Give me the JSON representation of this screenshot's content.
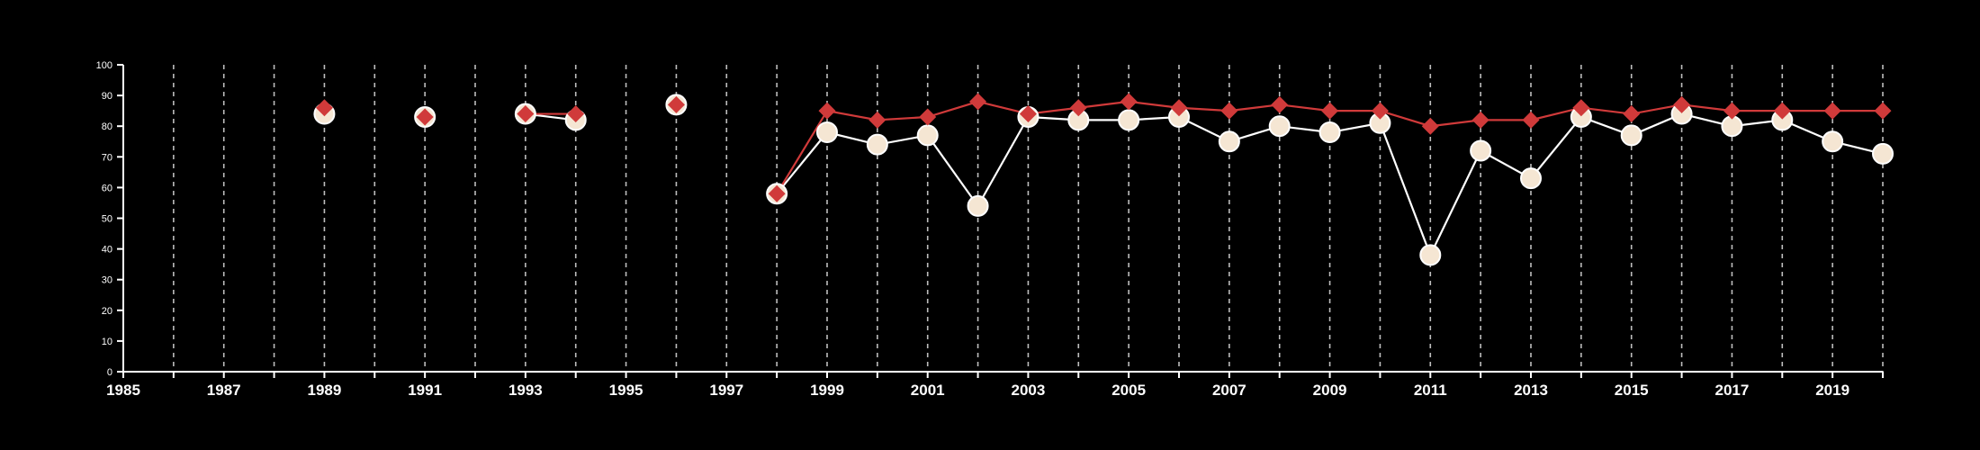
{
  "chart_data": {
    "type": "line",
    "title": "",
    "xlabel": "",
    "ylabel": "",
    "xlim": [
      1985,
      2020
    ],
    "ylim": [
      0,
      100
    ],
    "x_ticks": [
      1985,
      1987,
      1989,
      1991,
      1993,
      1995,
      1997,
      1999,
      2001,
      2003,
      2005,
      2007,
      2009,
      2011,
      2013,
      2015,
      2017,
      2019
    ],
    "y_ticks": [
      0,
      10,
      20,
      30,
      40,
      50,
      60,
      70,
      80,
      90,
      100
    ],
    "grid": "vertical dashed at every year",
    "legend": "none",
    "series": [
      {
        "marker": "circle",
        "color": "#f5e6d3",
        "edge_color": "#ffffff",
        "points": [
          {
            "x": 1989,
            "y": 84
          },
          {
            "x": 1991,
            "y": 83
          },
          {
            "x": 1993,
            "y": 84
          },
          {
            "x": 1994,
            "y": 82
          },
          {
            "x": 1996,
            "y": 87
          },
          {
            "x": 1998,
            "y": 58
          },
          {
            "x": 1999,
            "y": 78
          },
          {
            "x": 2000,
            "y": 74
          },
          {
            "x": 2001,
            "y": 77
          },
          {
            "x": 2002,
            "y": 54
          },
          {
            "x": 2003,
            "y": 83
          },
          {
            "x": 2004,
            "y": 82
          },
          {
            "x": 2005,
            "y": 82
          },
          {
            "x": 2006,
            "y": 83
          },
          {
            "x": 2007,
            "y": 75
          },
          {
            "x": 2008,
            "y": 80
          },
          {
            "x": 2009,
            "y": 78
          },
          {
            "x": 2010,
            "y": 81
          },
          {
            "x": 2011,
            "y": 38
          },
          {
            "x": 2012,
            "y": 72
          },
          {
            "x": 2013,
            "y": 63
          },
          {
            "x": 2014,
            "y": 83
          },
          {
            "x": 2015,
            "y": 77
          },
          {
            "x": 2016,
            "y": 84
          },
          {
            "x": 2017,
            "y": 80
          },
          {
            "x": 2018,
            "y": 82
          },
          {
            "x": 2019,
            "y": 75
          },
          {
            "x": 2020,
            "y": 71
          }
        ]
      },
      {
        "marker": "diamond",
        "color": "#d03a3a",
        "points": [
          {
            "x": 1989,
            "y": 86
          },
          {
            "x": 1991,
            "y": 83
          },
          {
            "x": 1993,
            "y": 84
          },
          {
            "x": 1994,
            "y": 84
          },
          {
            "x": 1996,
            "y": 87
          },
          {
            "x": 1998,
            "y": 58
          },
          {
            "x": 1999,
            "y": 85
          },
          {
            "x": 2000,
            "y": 82
          },
          {
            "x": 2001,
            "y": 83
          },
          {
            "x": 2002,
            "y": 88
          },
          {
            "x": 2003,
            "y": 84
          },
          {
            "x": 2004,
            "y": 86
          },
          {
            "x": 2005,
            "y": 88
          },
          {
            "x": 2006,
            "y": 86
          },
          {
            "x": 2007,
            "y": 85
          },
          {
            "x": 2008,
            "y": 87
          },
          {
            "x": 2009,
            "y": 85
          },
          {
            "x": 2010,
            "y": 85
          },
          {
            "x": 2011,
            "y": 80
          },
          {
            "x": 2012,
            "y": 82
          },
          {
            "x": 2013,
            "y": 82
          },
          {
            "x": 2014,
            "y": 86
          },
          {
            "x": 2015,
            "y": 84
          },
          {
            "x": 2016,
            "y": 87
          },
          {
            "x": 2017,
            "y": 85
          },
          {
            "x": 2018,
            "y": 85
          },
          {
            "x": 2019,
            "y": 85
          },
          {
            "x": 2020,
            "y": 85
          }
        ]
      }
    ]
  }
}
